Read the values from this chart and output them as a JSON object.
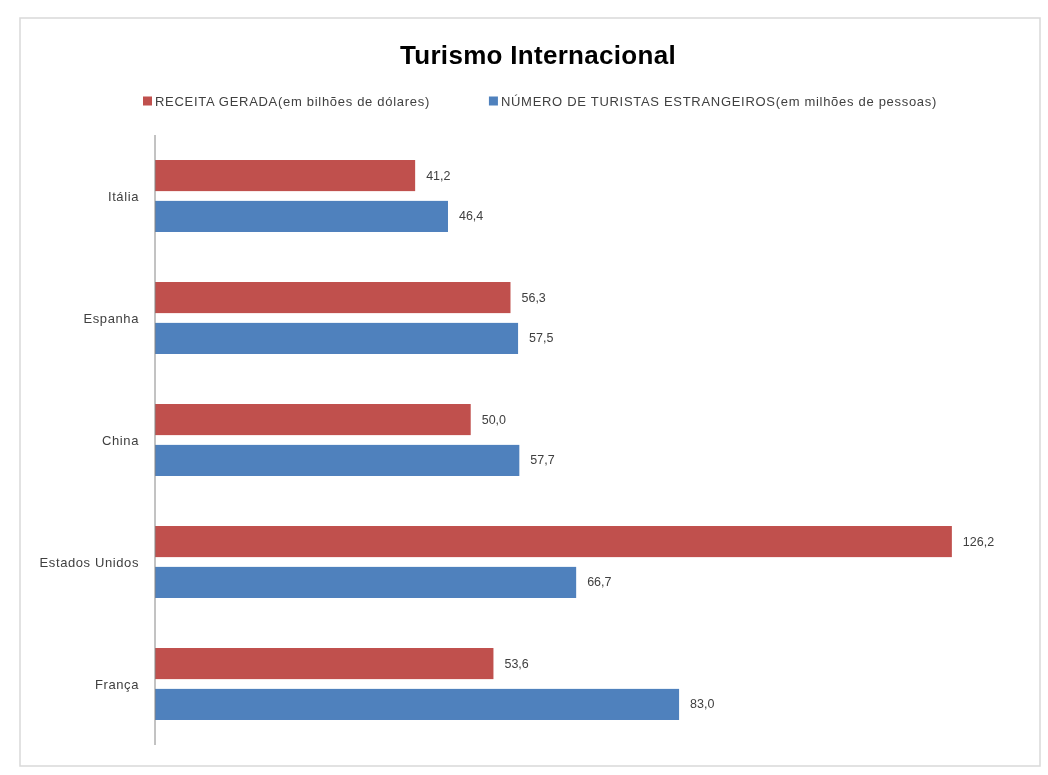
{
  "chart_data": {
    "type": "bar",
    "orientation": "horizontal",
    "title": "Turismo Internacional",
    "categories": [
      "Itália",
      "Espanha",
      "China",
      "Estados Unidos",
      "França"
    ],
    "series": [
      {
        "name": "RECEITA GERADA(em bilhões de dólares)",
        "color": "#c0504d",
        "values": [
          41.2,
          56.3,
          50.0,
          126.2,
          53.6
        ],
        "value_labels": [
          "41,2",
          "56,3",
          "50,0",
          "126,2",
          "53,6"
        ]
      },
      {
        "name": "NÚMERO DE TURISTAS ESTRANGEIROS(em milhões de pessoas)",
        "color": "#4f81bd",
        "values": [
          46.4,
          57.5,
          57.7,
          66.7,
          83.0
        ],
        "value_labels": [
          "46,4",
          "57,5",
          "57,7",
          "66,7",
          "83,0"
        ]
      }
    ],
    "xlim": [
      0,
      140
    ],
    "tick_labels": "y",
    "legend": "top"
  }
}
